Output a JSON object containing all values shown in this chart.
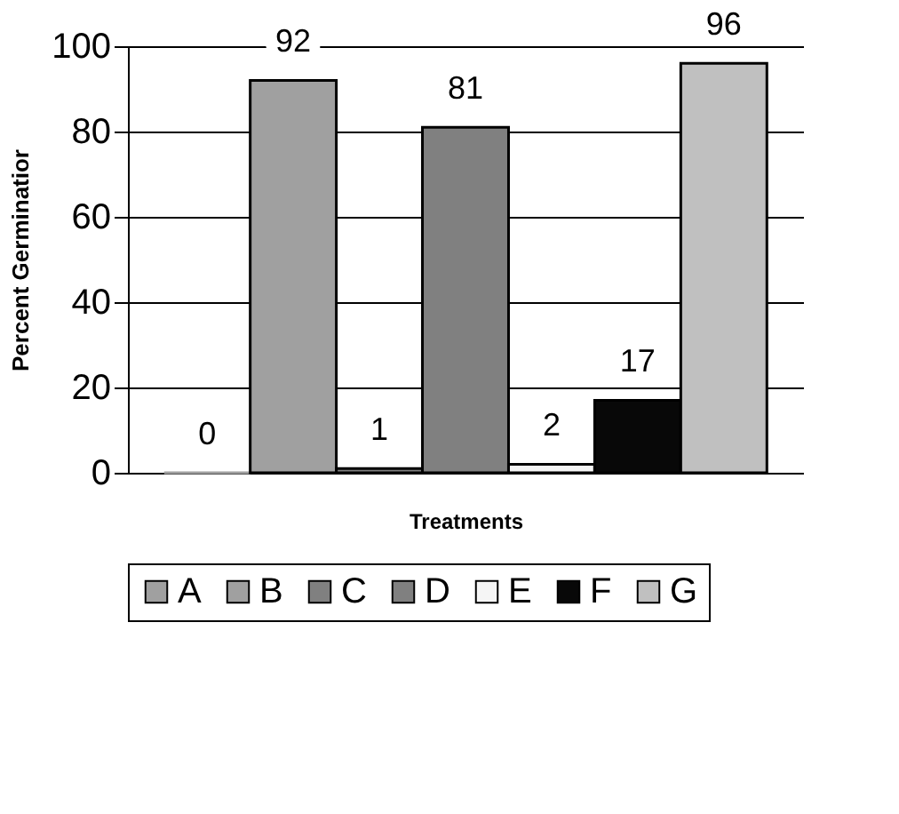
{
  "chart_data": {
    "type": "bar",
    "xlabel": "Treatments",
    "ylabel": "Percent Germinatior",
    "categories": [
      null
    ],
    "series": [
      {
        "name": "A",
        "color": "#a0a0a0",
        "values": [
          0
        ]
      },
      {
        "name": "B",
        "color": "#a0a0a0",
        "values": [
          92
        ]
      },
      {
        "name": "C",
        "color": "#808080",
        "values": [
          1
        ]
      },
      {
        "name": "D",
        "color": "#808080",
        "values": [
          81
        ]
      },
      {
        "name": "E",
        "color": "#f5f5f5",
        "values": [
          2
        ]
      },
      {
        "name": "F",
        "color": "#080808",
        "values": [
          17
        ]
      },
      {
        "name": "G",
        "color": "#c0c0c0",
        "values": [
          96
        ]
      }
    ],
    "ylim": [
      0,
      100
    ],
    "yticks": [
      0,
      20,
      40,
      60,
      80,
      100
    ],
    "grid": "y",
    "legend": "bottom",
    "data_labels": true,
    "tick_labels": "y"
  }
}
